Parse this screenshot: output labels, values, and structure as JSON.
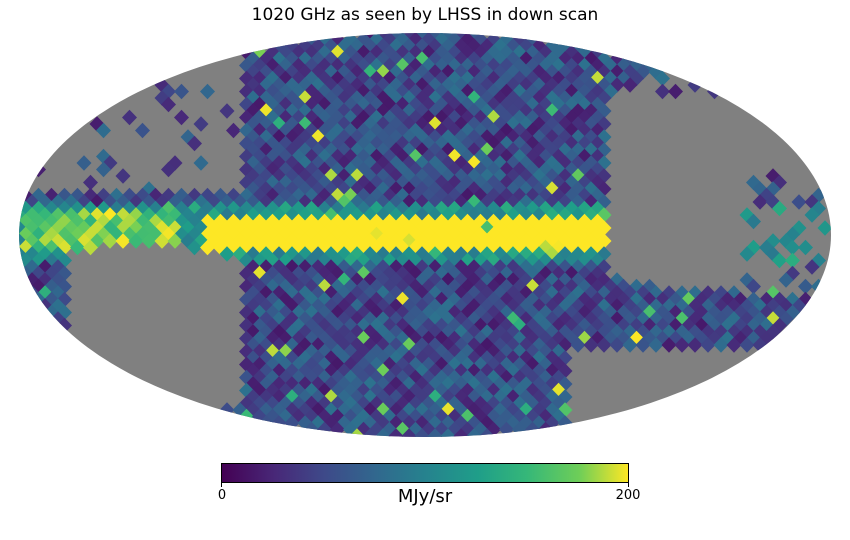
{
  "title": "1020 GHz as seen by LHSS in down scan",
  "colorbar": {
    "min_label": "0",
    "max_label": "200",
    "unit": "MJy/sr",
    "colormap": "viridis",
    "range": [
      0,
      200
    ]
  },
  "map": {
    "projection": "mollweide",
    "missing_color": "#808080",
    "galactic_plane_value": 200
  }
}
